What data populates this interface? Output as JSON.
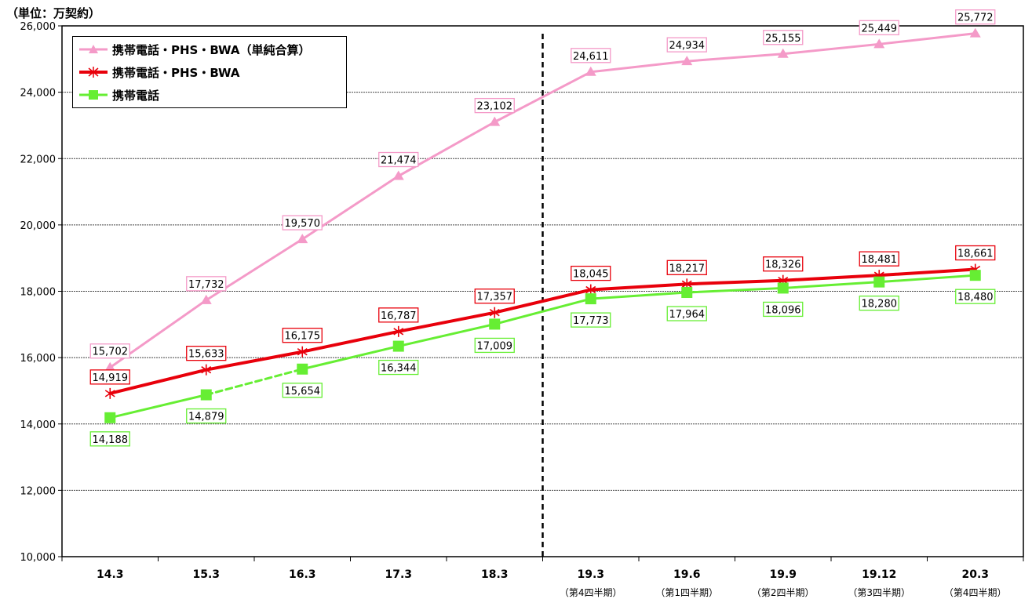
{
  "chart_data": {
    "type": "line",
    "unit_label": "（単位：万契約）",
    "categories": [
      "14.3",
      "15.3",
      "16.3",
      "17.3",
      "18.3",
      "19.3",
      "19.6",
      "19.9",
      "19.12",
      "20.3"
    ],
    "subcategories": [
      "",
      "",
      "",
      "",
      "",
      "（第4四半期）",
      "（第1四半期）",
      "（第2四半期）",
      "（第3四半期）",
      "（第4四半期）"
    ],
    "ylim": [
      10000,
      26000
    ],
    "yticks": [
      10000,
      12000,
      14000,
      16000,
      18000,
      20000,
      22000,
      24000,
      26000
    ],
    "ytick_labels": [
      "10,000",
      "12,000",
      "14,000",
      "16,000",
      "18,000",
      "20,000",
      "22,000",
      "24,000",
      "26,000"
    ],
    "grid": true,
    "legend_position": "top-left",
    "series": [
      {
        "name": "携帯電話・PHS・BWA（単純合算）",
        "color": "#f49ac8",
        "marker": "triangle",
        "values": [
          15702,
          17732,
          19570,
          21474,
          23102,
          24611,
          24934,
          25155,
          25449,
          25772
        ],
        "labels": [
          "15,702",
          "17,732",
          "19,570",
          "21,474",
          "23,102",
          "24,611",
          "24,934",
          "25,155",
          "25,449",
          "25,772"
        ]
      },
      {
        "name": "携帯電話・PHS・BWA",
        "color": "#e8000b",
        "marker": "asterisk",
        "values": [
          14919,
          15633,
          16175,
          16787,
          17357,
          18045,
          18217,
          18326,
          18481,
          18661
        ],
        "labels": [
          "14,919",
          "15,633",
          "16,175",
          "16,787",
          "17,357",
          "18,045",
          "18,217",
          "18,326",
          "18,481",
          "18,661"
        ]
      },
      {
        "name": "携帯電話",
        "color": "#66ee33",
        "marker": "square",
        "values": [
          14188,
          14879,
          15654,
          16344,
          17009,
          17773,
          17964,
          18096,
          18280,
          18480
        ],
        "labels": [
          "14,188",
          "14,879",
          "15,654",
          "16,344",
          "17,009",
          "17,773",
          "17,964",
          "18,096",
          "18,280",
          "18,480"
        ],
        "dashed_segment_after_index": 1
      }
    ]
  }
}
